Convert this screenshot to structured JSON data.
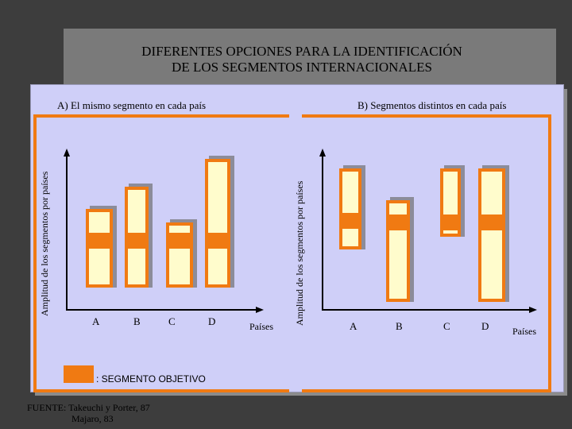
{
  "title": {
    "line1": "DIFERENTES OPCIONES PARA LA IDENTIFICACIÓN",
    "line2": "DE LOS SEGMENTOS INTERNACIONALES"
  },
  "panels": {
    "a": {
      "title": "A) El mismo segmento en cada país",
      "ylabel": "Amplitud de los segmentos por países",
      "xlabel": "Países",
      "categories": [
        "A",
        "B",
        "C",
        "D"
      ]
    },
    "b": {
      "title": "B) Segmentos distintos en cada país",
      "ylabel": "Amplitud de los segmentos por países",
      "xlabel": "Países",
      "categories": [
        "A",
        "B",
        "C",
        "D"
      ]
    }
  },
  "legend": {
    "label": ": SEGMENTO OBJETIVO"
  },
  "source": {
    "line1": "FUENTE: Takeuchi y Porter, 87",
    "line2": "Majaro, 83"
  },
  "colors": {
    "segment": "#f07a12",
    "bar_fill": "#fffccc",
    "panel": "#cfcff8"
  }
}
